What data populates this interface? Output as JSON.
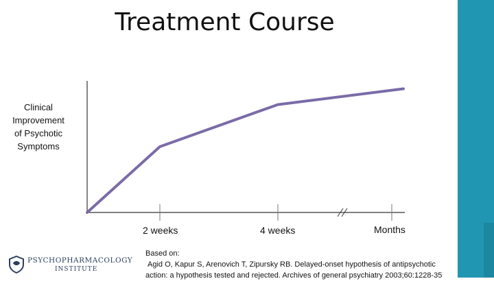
{
  "slide": {
    "title": "Treatment Course",
    "citation_lines": [
      "Based on:",
      "Agid O, Kapur S, Arenovich T, Zipursky RB. Delayed-onset hypothesis of antipsychotic",
      "action: a hypothesis tested and rejected. Archives of general psychiatry 2003;60:1228-35"
    ],
    "logo": {
      "line1": "PSYCHOPHARMACOLOGY",
      "line2": "INSTITUTE"
    },
    "colors": {
      "sidebar": "#2196b3",
      "line": "#7b6ba8",
      "axis": "#333333",
      "logo": "#2c3e5c"
    }
  },
  "chart_data": {
    "type": "line",
    "title": "Treatment Course",
    "ylabel_lines": [
      "Clinical",
      "Improvement",
      "of Psychotic",
      "Symptoms"
    ],
    "xlabel": "",
    "categories": [
      "",
      "2 weeks",
      "4 weeks",
      "",
      "Months"
    ],
    "tick_labels": [
      "2 weeks",
      "4 weeks",
      "Months"
    ],
    "axis_break": "between 4 weeks and Months",
    "series": [
      {
        "values": [
          0,
          50,
          82,
          null,
          94
        ]
      }
    ],
    "grid": false
  }
}
